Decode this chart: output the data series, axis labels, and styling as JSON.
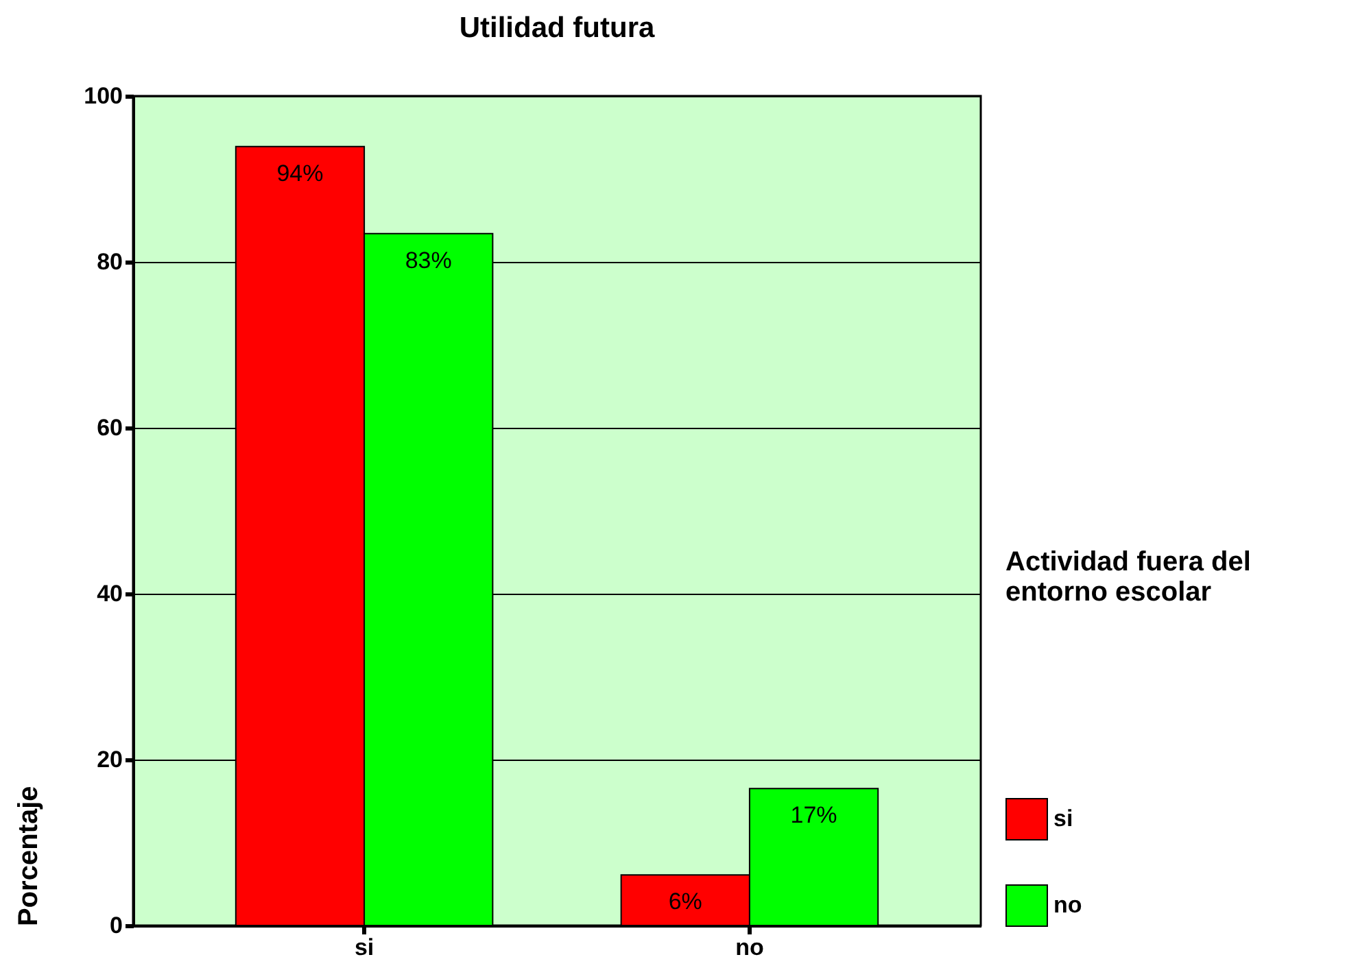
{
  "chart_data": {
    "type": "bar",
    "title": "Utilidad futura",
    "ylabel": "Porcentaje",
    "legend_title": "Actividad fuera del entorno escolar",
    "categories": [
      "si",
      "no"
    ],
    "series": [
      {
        "name": "si",
        "color": "#ff0000",
        "values": [
          93.9,
          6.1
        ],
        "value_labels": [
          "94%",
          "6%"
        ]
      },
      {
        "name": "no",
        "color": "#00ff00",
        "values": [
          83.4,
          16.5
        ],
        "value_labels": [
          "83%",
          "17%"
        ]
      }
    ],
    "ylim": [
      0,
      100
    ],
    "yticks": [
      0,
      20,
      40,
      60,
      80,
      100
    ],
    "grid": "y",
    "legend": "right"
  }
}
